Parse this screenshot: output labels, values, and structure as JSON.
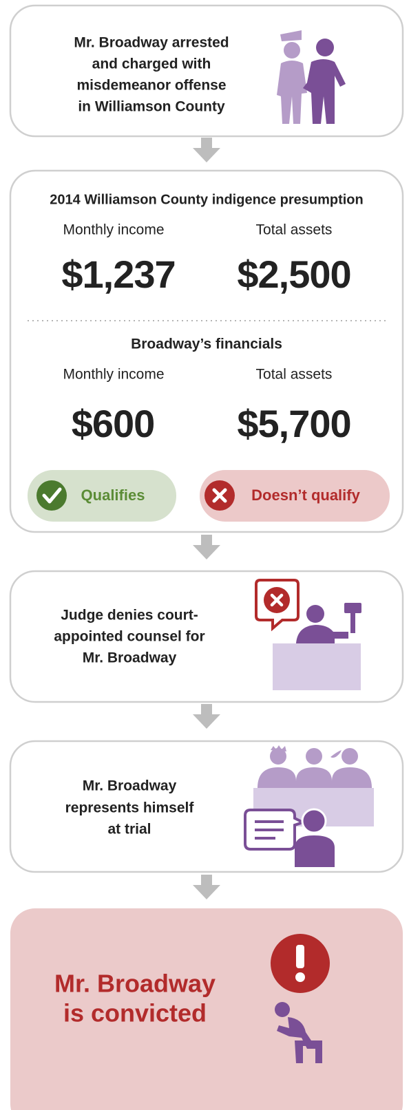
{
  "steps": [
    {
      "lines": [
        "Mr. Broadway arrested",
        "and charged with",
        "misdemeanor offense",
        "in Williamson County"
      ]
    },
    {
      "title": "2014 Williamson County indigence presumption",
      "threshold": {
        "labels": [
          "Monthly income",
          "Total assets"
        ],
        "values": [
          "$1,237",
          "$2,500"
        ]
      },
      "subtitle": "Broadway’s financials",
      "broadway": {
        "labels": [
          "Monthly income",
          "Total assets"
        ],
        "values": [
          "$600",
          "$5,700"
        ]
      },
      "results": [
        "Qualifies",
        "Doesn’t qualify"
      ]
    },
    {
      "lines": [
        "Judge denies court-",
        "appointed counsel for",
        "Mr. Broadway"
      ]
    },
    {
      "lines": [
        "Mr. Broadway",
        "represents himself",
        "at trial"
      ]
    },
    {
      "lines": [
        "Mr. Broadway",
        "is convicted"
      ]
    }
  ]
}
